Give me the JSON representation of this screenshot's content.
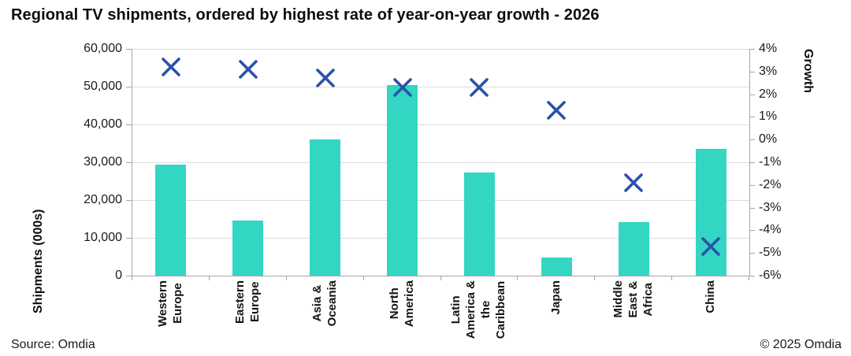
{
  "footer": {
    "source": "Source: Omdia",
    "copyright": "© 2025 Omdia"
  },
  "chart_data": {
    "type": "combo-bar-scatter",
    "title": "Regional TV shipments, ordered by highest rate of year-on-year growth - 2026",
    "categories": [
      "Western Europe",
      "Eastern Europe",
      "Asia & Oceania",
      "North America",
      "Latin America & the Caribbean",
      "Japan",
      "Middle East & Africa",
      "China"
    ],
    "category_display": [
      "Western\nEurope",
      "Eastern\nEurope",
      "Asia &\nOceania",
      "North\nAmerica",
      "Latin\nAmerica &\nthe\nCaribbean",
      "Japan",
      "Middle\nEast &\nAfrica",
      "China"
    ],
    "series": [
      {
        "name": "Shipments (000s)",
        "type": "bar",
        "axis": "left",
        "color": "#33d6c3",
        "values": [
          29300,
          14600,
          36100,
          50400,
          27200,
          4800,
          14100,
          33500
        ]
      },
      {
        "name": "Growth",
        "type": "scatter",
        "marker": "x",
        "axis": "right",
        "color": "#2a52a8",
        "values": [
          3.2,
          3.1,
          2.7,
          2.3,
          2.3,
          1.3,
          -1.9,
          -4.7
        ]
      }
    ],
    "left_axis": {
      "title": "Shipments (000s)",
      "min": 0,
      "max": 60000,
      "step": 10000,
      "tick_labels": [
        "60,000",
        "50,000",
        "40,000",
        "30,000",
        "20,000",
        "10,000",
        "0"
      ]
    },
    "right_axis": {
      "title": "Growth",
      "min": -6,
      "max": 4,
      "step": 1,
      "tick_labels": [
        "4%",
        "3%",
        "2%",
        "1%",
        "0%",
        "-1%",
        "-2%",
        "-3%",
        "-4%",
        "-5%",
        "-6%"
      ]
    },
    "grid": true,
    "legend": "none",
    "colors": {
      "bar": "#33d6c3",
      "marker": "#2a52a8",
      "gridline": "#dcdcdc",
      "axis": "#a6a6a6"
    }
  }
}
